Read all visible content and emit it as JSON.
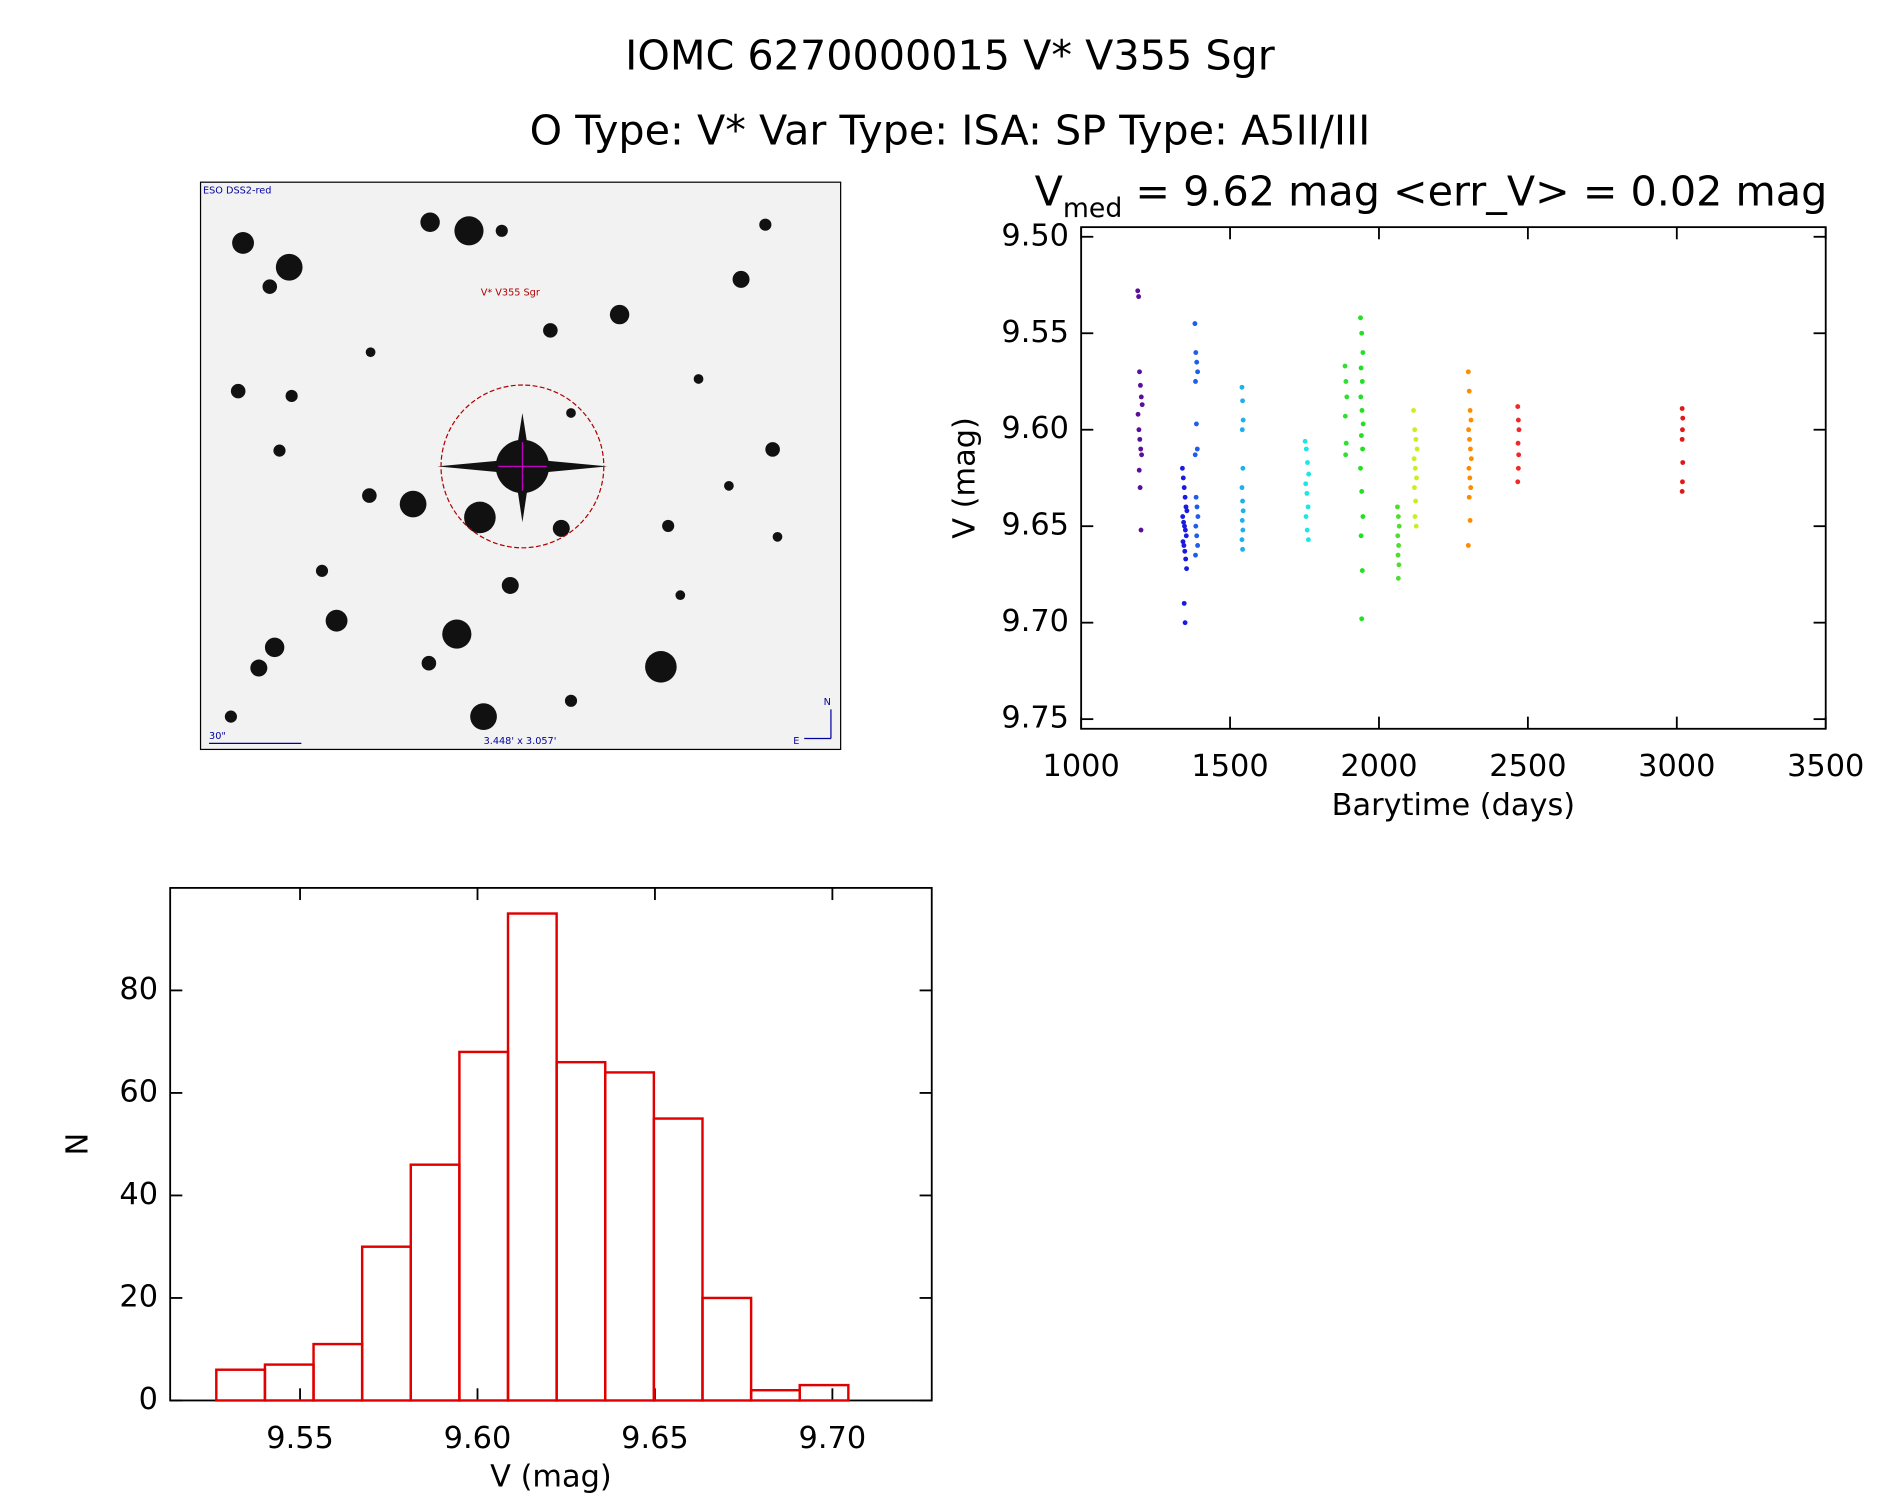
{
  "title": "IOMC 6270000015   V* V355 Sgr",
  "subtitle": "O Type: V*  Var Type: ISA:  SP Type: A5II/III",
  "image": {
    "survey": "ESO DSS2-red",
    "target": "V* V355 Sgr",
    "scale": "30\"",
    "size": "3.448' x 3.057'",
    "north": "N",
    "east": "E"
  },
  "chart_data": [
    {
      "type": "scatter",
      "title_parts": [
        "V",
        "med",
        " = 9.62 mag <err_V> = 0.02 mag"
      ],
      "x_label": "Barytime (days)",
      "y_label": "V (mag)",
      "xlim": [
        1000,
        3500
      ],
      "xticks": [
        1000,
        1500,
        2000,
        2500,
        3000,
        3500
      ],
      "ylim": [
        9.755,
        9.495
      ],
      "yticks": [
        {
          "value": 9.5,
          "label": "9.50"
        },
        9.55,
        {
          "value": 9.6,
          "label": "9.60"
        },
        9.65,
        {
          "value": 9.7,
          "label": "9.70"
        },
        9.75
      ],
      "series": [
        {
          "color": "#5a0e9a",
          "x": [
            1190,
            1193,
            1196,
            1199,
            1202,
            1205,
            1191,
            1194,
            1197,
            1200,
            1203,
            1195,
            1198,
            1201
          ],
          "values": [
            9.528,
            9.531,
            9.57,
            9.577,
            9.583,
            9.587,
            9.592,
            9.6,
            9.605,
            9.61,
            9.613,
            9.621,
            9.63,
            9.652
          ]
        },
        {
          "color": "#1a1ae0",
          "x": [
            1340,
            1343,
            1346,
            1349,
            1352,
            1355,
            1341,
            1344,
            1347,
            1350,
            1353,
            1342,
            1345,
            1348,
            1351,
            1354,
            1346,
            1349
          ],
          "values": [
            9.62,
            9.625,
            9.63,
            9.635,
            9.64,
            9.642,
            9.645,
            9.648,
            9.65,
            9.652,
            9.655,
            9.658,
            9.66,
            9.663,
            9.667,
            9.672,
            9.69,
            9.7
          ]
        },
        {
          "color": "#1e5ee8",
          "x": [
            1382,
            1385,
            1388,
            1391,
            1384,
            1387,
            1390,
            1383,
            1386,
            1389,
            1392,
            1385,
            1388,
            1391,
            1384
          ],
          "values": [
            9.545,
            9.56,
            9.565,
            9.57,
            9.575,
            9.597,
            9.61,
            9.613,
            9.635,
            9.64,
            9.645,
            9.65,
            9.655,
            9.66,
            9.665
          ]
        },
        {
          "color": "#1fb0ea",
          "x": [
            1540,
            1542,
            1544,
            1541,
            1543,
            1540,
            1542,
            1544,
            1541,
            1543,
            1540,
            1542
          ],
          "values": [
            9.578,
            9.585,
            9.595,
            9.6,
            9.62,
            9.63,
            9.637,
            9.642,
            9.647,
            9.652,
            9.657,
            9.662
          ]
        },
        {
          "color": "#1ee6e6",
          "x": [
            1752,
            1756,
            1760,
            1764,
            1754,
            1758,
            1762,
            1755,
            1759,
            1763
          ],
          "values": [
            9.606,
            9.61,
            9.617,
            9.623,
            9.628,
            9.633,
            9.64,
            9.645,
            9.652,
            9.657
          ]
        },
        {
          "color": "#30e030",
          "x": [
            1886,
            1889,
            1892,
            1887,
            1890,
            1888
          ],
          "values": [
            9.567,
            9.575,
            9.583,
            9.593,
            9.607,
            9.613
          ]
        },
        {
          "color": "#22e022",
          "x": [
            1938,
            1942,
            1946,
            1940,
            1944,
            1939,
            1943,
            1947,
            1941,
            1945,
            1938,
            1942,
            1946,
            1940,
            1944,
            1942
          ],
          "values": [
            9.542,
            9.55,
            9.56,
            9.568,
            9.575,
            9.583,
            9.59,
            9.597,
            9.603,
            9.61,
            9.62,
            9.632,
            9.645,
            9.655,
            9.673,
            9.698
          ]
        },
        {
          "color": "#50dd30",
          "x": [
            2062,
            2065,
            2068,
            2063,
            2066,
            2064,
            2067,
            2065
          ],
          "values": [
            9.64,
            9.645,
            9.65,
            9.655,
            9.66,
            9.665,
            9.67,
            9.677
          ]
        },
        {
          "color": "#c8f020",
          "x": [
            2116,
            2120,
            2124,
            2128,
            2118,
            2122,
            2126,
            2119,
            2123,
            2121,
            2125
          ],
          "values": [
            9.59,
            9.6,
            9.605,
            9.61,
            9.615,
            9.62,
            9.625,
            9.63,
            9.637,
            9.645,
            9.65
          ]
        },
        {
          "color": "#ff8c00",
          "x": [
            2300,
            2303,
            2306,
            2309,
            2301,
            2304,
            2307,
            2310,
            2302,
            2305,
            2308,
            2303,
            2306,
            2300
          ],
          "values": [
            9.57,
            9.58,
            9.59,
            9.595,
            9.6,
            9.605,
            9.61,
            9.615,
            9.62,
            9.625,
            9.63,
            9.635,
            9.647,
            9.66
          ]
        },
        {
          "color": "#f02828",
          "x": [
            2466,
            2468,
            2470,
            2467,
            2469,
            2468,
            2466
          ],
          "values": [
            9.588,
            9.595,
            9.6,
            9.607,
            9.613,
            9.62,
            9.627
          ]
        },
        {
          "color": "#e01818",
          "x": [
            3018,
            3020,
            3019,
            3018,
            3020,
            3019,
            3018
          ],
          "values": [
            9.589,
            9.594,
            9.6,
            9.605,
            9.617,
            9.627,
            9.632
          ]
        }
      ]
    },
    {
      "type": "histogram",
      "x_label": "V (mag)",
      "y_label": "N",
      "xlim": [
        9.5134,
        9.728
      ],
      "xticks": [
        9.55,
        {
          "value": 9.6,
          "label": "9.60"
        },
        9.65,
        {
          "value": 9.7,
          "label": "9.70"
        }
      ],
      "ylim": [
        0,
        100
      ],
      "yticks": [
        0,
        20,
        40,
        60,
        80
      ],
      "color": "#e00000",
      "bins": [
        9.5264,
        9.5401,
        9.5538,
        9.5675,
        9.5812,
        9.5949,
        9.6086,
        9.6223,
        9.636,
        9.6497,
        9.6634,
        9.6771,
        9.6908,
        9.7045
      ],
      "values": [
        6,
        7,
        11,
        30,
        46,
        68,
        95,
        66,
        64,
        55,
        20,
        2,
        3
      ]
    }
  ]
}
